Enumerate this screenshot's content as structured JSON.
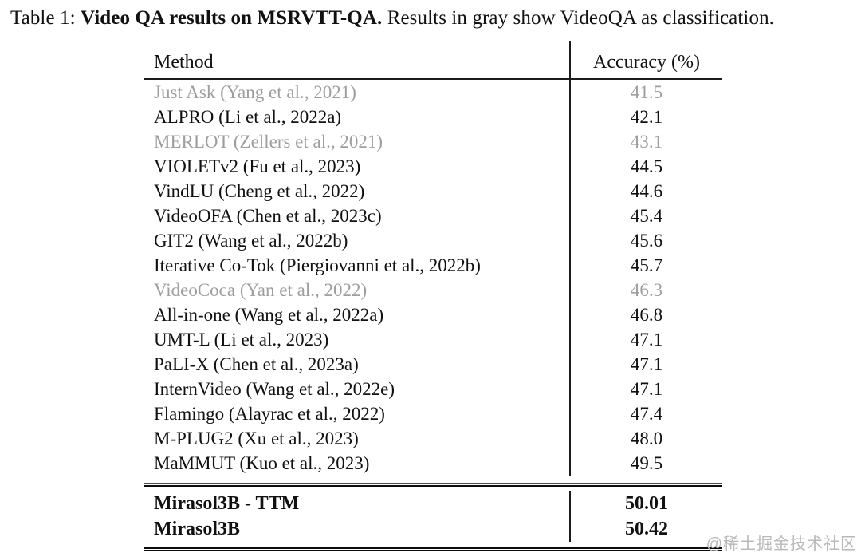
{
  "caption": {
    "prefix": "Table 1: ",
    "bold": "Video QA results on MSRVTT-QA.",
    "rest": " Results in gray show VideoQA as classification."
  },
  "table": {
    "columns": [
      "Method",
      "Accuracy (%)"
    ],
    "rows": [
      {
        "method": "Just Ask (Yang et al., 2021)",
        "accuracy": "41.5",
        "gray": true
      },
      {
        "method": "ALPRO (Li et al., 2022a)",
        "accuracy": "42.1",
        "gray": false
      },
      {
        "method": "MERLOT (Zellers et al., 2021)",
        "accuracy": "43.1",
        "gray": true
      },
      {
        "method": "VIOLETv2 (Fu et al., 2023)",
        "accuracy": "44.5",
        "gray": false
      },
      {
        "method": "VindLU (Cheng et al., 2022)",
        "accuracy": "44.6",
        "gray": false
      },
      {
        "method": "VideoOFA (Chen et al., 2023c)",
        "accuracy": "45.4",
        "gray": false
      },
      {
        "method": "GIT2 (Wang et al., 2022b)",
        "accuracy": "45.6",
        "gray": false
      },
      {
        "method": "Iterative Co-Tok (Piergiovanni et al., 2022b)",
        "accuracy": "45.7",
        "gray": false
      },
      {
        "method": "VideoCoca (Yan et al., 2022)",
        "accuracy": "46.3",
        "gray": true
      },
      {
        "method": "All-in-one (Wang et al., 2022a)",
        "accuracy": "46.8",
        "gray": false
      },
      {
        "method": "UMT-L (Li et al., 2023)",
        "accuracy": "47.1",
        "gray": false
      },
      {
        "method": "PaLI-X (Chen et al., 2023a)",
        "accuracy": "47.1",
        "gray": false
      },
      {
        "method": "InternVideo (Wang et al., 2022e)",
        "accuracy": "47.1",
        "gray": false
      },
      {
        "method": "Flamingo (Alayrac et al., 2022)",
        "accuracy": "47.4",
        "gray": false
      },
      {
        "method": "M-PLUG2 (Xu et al., 2023)",
        "accuracy": "48.0",
        "gray": false
      },
      {
        "method": "MaMMUT (Kuo et al., 2023)",
        "accuracy": "49.5",
        "gray": false
      }
    ],
    "highlight_rows": [
      {
        "method": "Mirasol3B - TTM",
        "accuracy": "50.01"
      },
      {
        "method": "Mirasol3B",
        "accuracy": "50.42"
      }
    ]
  },
  "watermark": "@稀土掘金技术社区",
  "colors": {
    "gray_row_text": "#9e9e9e",
    "text": "#111111",
    "rule": "#0b0b0b",
    "watermark": "#b8b8b8"
  }
}
